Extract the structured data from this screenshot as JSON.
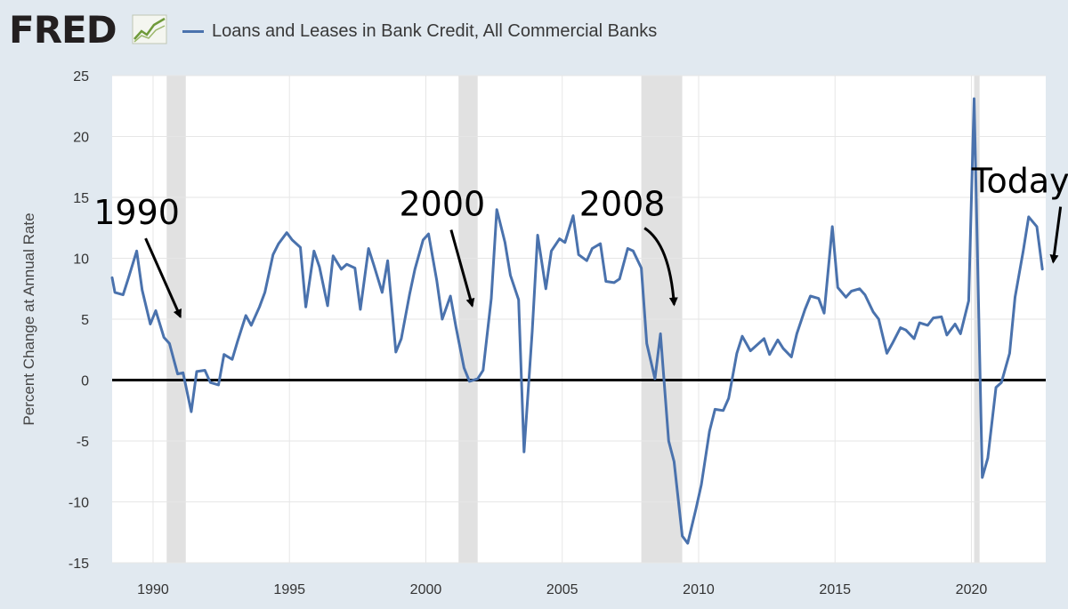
{
  "header": {
    "logo_text": "FRED",
    "legend_label": "Loans and Leases in Bank Credit, All Commercial Banks",
    "series_color": "#4a72ad"
  },
  "chart_data": {
    "type": "line",
    "title": "Loans and Leases in Bank Credit, All Commercial Banks",
    "xlabel": "",
    "ylabel": "Percent Change at Annual Rate",
    "xlim": [
      1988.5,
      2022.9
    ],
    "ylim": [
      -15,
      25
    ],
    "x_ticks": [
      1990,
      1995,
      2000,
      2005,
      2010,
      2015,
      2020
    ],
    "y_ticks": [
      -15,
      -10,
      -5,
      0,
      5,
      10,
      15,
      20,
      25
    ],
    "grid": true,
    "zero_line": true,
    "recessions": [
      [
        1990.5,
        1991.2
      ],
      [
        2001.2,
        2001.9
      ],
      [
        2007.9,
        2009.4
      ],
      [
        2020.1,
        2020.3
      ]
    ],
    "annotations": [
      {
        "text": "1990",
        "x": 1989.4,
        "y": 12.8,
        "arrow_to": [
          1991.0,
          5.2
        ],
        "curved": false
      },
      {
        "text": "2000",
        "x": 2000.6,
        "y": 13.5,
        "arrow_to": [
          2001.7,
          6.1
        ],
        "curved": false
      },
      {
        "text": "2008",
        "x": 2007.2,
        "y": 13.5,
        "arrow_to": [
          2009.1,
          6.2
        ],
        "curved": true
      },
      {
        "text": "Today",
        "x": 2021.8,
        "y": 15.4,
        "arrow_to": [
          2023.0,
          9.7
        ],
        "curved": false
      }
    ],
    "series": [
      {
        "name": "Loans and Leases in Bank Credit, All Commercial Banks",
        "color": "#4a72ad",
        "points": [
          [
            1988.5,
            8.4
          ],
          [
            1988.6,
            7.2
          ],
          [
            1988.9,
            7.0
          ],
          [
            1989.1,
            8.4
          ],
          [
            1989.4,
            10.6
          ],
          [
            1989.6,
            7.4
          ],
          [
            1989.9,
            4.6
          ],
          [
            1990.1,
            5.7
          ],
          [
            1990.4,
            3.5
          ],
          [
            1990.6,
            3.0
          ],
          [
            1990.9,
            0.5
          ],
          [
            1991.1,
            0.6
          ],
          [
            1991.4,
            -2.6
          ],
          [
            1991.6,
            0.7
          ],
          [
            1991.9,
            0.8
          ],
          [
            1992.1,
            -0.2
          ],
          [
            1992.4,
            -0.4
          ],
          [
            1992.6,
            2.1
          ],
          [
            1992.9,
            1.7
          ],
          [
            1993.1,
            3.2
          ],
          [
            1993.4,
            5.3
          ],
          [
            1993.6,
            4.5
          ],
          [
            1993.9,
            6.0
          ],
          [
            1994.1,
            7.2
          ],
          [
            1994.4,
            10.3
          ],
          [
            1994.6,
            11.2
          ],
          [
            1994.9,
            12.1
          ],
          [
            1995.1,
            11.5
          ],
          [
            1995.4,
            10.9
          ],
          [
            1995.6,
            6.0
          ],
          [
            1995.9,
            10.6
          ],
          [
            1996.1,
            9.3
          ],
          [
            1996.4,
            6.1
          ],
          [
            1996.6,
            10.2
          ],
          [
            1996.9,
            9.1
          ],
          [
            1997.1,
            9.5
          ],
          [
            1997.4,
            9.2
          ],
          [
            1997.6,
            5.8
          ],
          [
            1997.9,
            10.8
          ],
          [
            1998.1,
            9.4
          ],
          [
            1998.4,
            7.2
          ],
          [
            1998.6,
            9.8
          ],
          [
            1998.9,
            2.3
          ],
          [
            1999.1,
            3.4
          ],
          [
            1999.4,
            7.0
          ],
          [
            1999.6,
            9.1
          ],
          [
            1999.9,
            11.5
          ],
          [
            2000.1,
            12.0
          ],
          [
            2000.4,
            8.2
          ],
          [
            2000.6,
            5.0
          ],
          [
            2000.9,
            6.9
          ],
          [
            2001.1,
            4.4
          ],
          [
            2001.4,
            1.0
          ],
          [
            2001.6,
            -0.1
          ],
          [
            2001.9,
            0.1
          ],
          [
            2002.1,
            0.8
          ],
          [
            2002.4,
            6.7
          ],
          [
            2002.6,
            14.0
          ],
          [
            2002.9,
            11.3
          ],
          [
            2003.1,
            8.6
          ],
          [
            2003.4,
            6.6
          ],
          [
            2003.6,
            -5.9
          ],
          [
            2003.9,
            4.0
          ],
          [
            2004.1,
            11.9
          ],
          [
            2004.4,
            7.5
          ],
          [
            2004.6,
            10.6
          ],
          [
            2004.9,
            11.6
          ],
          [
            2005.1,
            11.3
          ],
          [
            2005.4,
            13.5
          ],
          [
            2005.6,
            10.3
          ],
          [
            2005.9,
            9.8
          ],
          [
            2006.1,
            10.8
          ],
          [
            2006.4,
            11.2
          ],
          [
            2006.6,
            8.1
          ],
          [
            2006.9,
            8.0
          ],
          [
            2007.1,
            8.3
          ],
          [
            2007.4,
            10.8
          ],
          [
            2007.6,
            10.6
          ],
          [
            2007.9,
            9.2
          ],
          [
            2008.1,
            3.0
          ],
          [
            2008.4,
            0.1
          ],
          [
            2008.6,
            3.8
          ],
          [
            2008.9,
            -5.0
          ],
          [
            2009.1,
            -6.7
          ],
          [
            2009.4,
            -12.8
          ],
          [
            2009.6,
            -13.4
          ],
          [
            2009.9,
            -10.6
          ],
          [
            2010.1,
            -8.6
          ],
          [
            2010.4,
            -4.2
          ],
          [
            2010.6,
            -2.4
          ],
          [
            2010.9,
            -2.5
          ],
          [
            2011.1,
            -1.5
          ],
          [
            2011.4,
            2.2
          ],
          [
            2011.6,
            3.6
          ],
          [
            2011.9,
            2.4
          ],
          [
            2012.1,
            2.8
          ],
          [
            2012.4,
            3.4
          ],
          [
            2012.6,
            2.1
          ],
          [
            2012.9,
            3.3
          ],
          [
            2013.1,
            2.6
          ],
          [
            2013.4,
            1.9
          ],
          [
            2013.6,
            3.8
          ],
          [
            2013.9,
            5.8
          ],
          [
            2014.1,
            6.9
          ],
          [
            2014.4,
            6.7
          ],
          [
            2014.6,
            5.5
          ],
          [
            2014.9,
            12.6
          ],
          [
            2015.1,
            7.6
          ],
          [
            2015.4,
            6.8
          ],
          [
            2015.6,
            7.3
          ],
          [
            2015.9,
            7.5
          ],
          [
            2016.1,
            7.0
          ],
          [
            2016.4,
            5.6
          ],
          [
            2016.6,
            5.0
          ],
          [
            2016.9,
            2.2
          ],
          [
            2017.1,
            3.0
          ],
          [
            2017.4,
            4.3
          ],
          [
            2017.6,
            4.1
          ],
          [
            2017.9,
            3.4
          ],
          [
            2018.1,
            4.7
          ],
          [
            2018.4,
            4.5
          ],
          [
            2018.6,
            5.1
          ],
          [
            2018.9,
            5.2
          ],
          [
            2019.1,
            3.7
          ],
          [
            2019.4,
            4.6
          ],
          [
            2019.6,
            3.8
          ],
          [
            2019.9,
            6.5
          ],
          [
            2020.1,
            23.1
          ],
          [
            2020.4,
            -8.0
          ],
          [
            2020.6,
            -6.4
          ],
          [
            2020.9,
            -0.6
          ],
          [
            2021.1,
            -0.2
          ],
          [
            2021.4,
            2.2
          ],
          [
            2021.6,
            6.8
          ],
          [
            2021.9,
            10.6
          ],
          [
            2022.1,
            13.4
          ],
          [
            2022.4,
            12.6
          ],
          [
            2022.6,
            9.1
          ]
        ]
      }
    ]
  }
}
